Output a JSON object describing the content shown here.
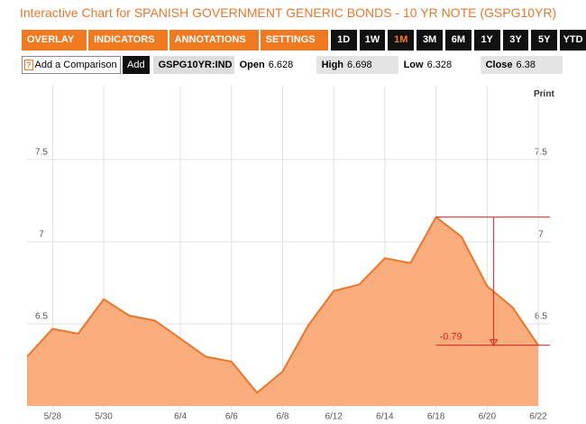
{
  "title": "Interactive Chart for SPANISH GOVERNMENT GENERIC BONDS - 10 YR NOTE (GSPG10YR)",
  "menus": [
    "OVERLAY",
    "INDICATORS",
    "ANNOTATIONS",
    "SETTINGS"
  ],
  "ranges": [
    "1D",
    "1W",
    "1M",
    "3M",
    "6M",
    "1Y",
    "3Y",
    "5Y",
    "YTD"
  ],
  "active_range": 2,
  "comparison": {
    "help": "?",
    "placeholder": "Add a Comparison",
    "button": "Add"
  },
  "ticker": "GSPG10YR:IND",
  "quote": [
    {
      "label": "Open",
      "value": 6.628
    },
    {
      "label": "High",
      "value": 6.698
    },
    {
      "label": "Low",
      "value": 6.328
    },
    {
      "label": "Close",
      "value": 6.38
    }
  ],
  "print": "Print",
  "chart_data": {
    "type": "area",
    "categories": [
      null,
      "5/28",
      null,
      "5/30",
      null,
      null,
      "6/4",
      null,
      "6/6",
      null,
      "6/8",
      null,
      "6/12",
      null,
      "6/14",
      null,
      "6/18",
      null,
      "6/20",
      null,
      "6/22"
    ],
    "series": [
      {
        "name": "GSPG10YR",
        "color": "#e8772e",
        "values": [
          6.3,
          6.47,
          6.44,
          6.65,
          6.55,
          6.52,
          6.41,
          6.3,
          6.27,
          6.08,
          6.21,
          6.49,
          6.7,
          6.74,
          6.9,
          6.87,
          7.15,
          7.03,
          6.73,
          6.6,
          6.37
        ]
      }
    ],
    "ylim": [
      6,
      7.95
    ],
    "yticks": [
      6.5,
      7,
      7.5
    ],
    "grid": true,
    "annotation": "-0.79"
  }
}
